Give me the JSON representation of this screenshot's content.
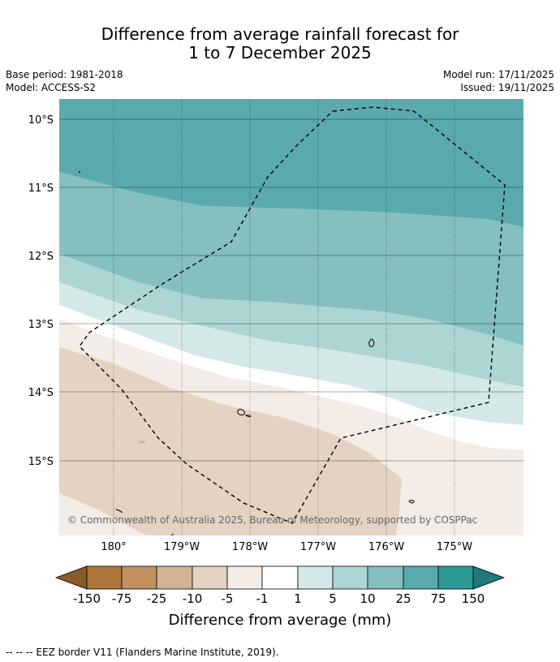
{
  "header": {
    "title_line1": "Difference from average rainfall forecast for",
    "title_line2": "1 to 7 December 2025",
    "base_period": "Base period: 1981-2018",
    "model": "Model: ACCESS-S2",
    "model_run": "Model run: 17/11/2025",
    "issued": "Issued: 19/11/2025"
  },
  "map": {
    "lat_labels": [
      "10°S",
      "11°S",
      "12°S",
      "13°S",
      "14°S",
      "15°S"
    ],
    "lon_labels": [
      "180°",
      "179°W",
      "178°W",
      "177°W",
      "176°W",
      "175°W"
    ],
    "copyright": "© Commonwealth of Australia 2025, Bureau of Meteorology, supported by COSPPac",
    "colors": {
      "wet_150": "#2e9b96",
      "wet_75": "#5aaaad",
      "wet_25": "#85bfbf",
      "wet_10": "#acd5d4",
      "wet_5": "#d4e8e7",
      "neutral": "#ffffff",
      "dry_5": "#f4ece6",
      "dry_10": "#e3d3c3",
      "dry_25": "#d0b394",
      "dry_75": "#c09061",
      "dry_150": "#ad773c"
    }
  },
  "legend": {
    "ticks": [
      "-150",
      "-75",
      "-25",
      "-10",
      "-5",
      "-1",
      "1",
      "5",
      "10",
      "25",
      "75",
      "150"
    ],
    "label": "Difference from average (mm)"
  },
  "footer": {
    "eez_note": "--  --  -- EEZ border V11 (Flanders Marine Institute, 2019)."
  }
}
